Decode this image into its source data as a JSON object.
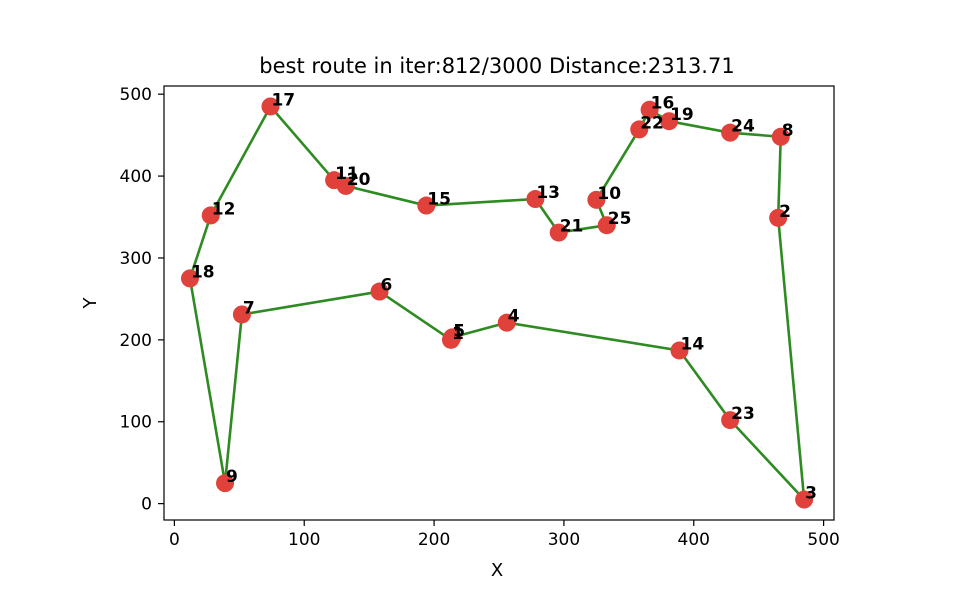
{
  "chart_data": {
    "type": "scatter",
    "title": "best route in iter:812/3000 Distance:2313.71",
    "xlabel": "X",
    "ylabel": "Y",
    "xlim": [
      -8,
      508
    ],
    "ylim": [
      -20,
      510
    ],
    "xticks": [
      0,
      100,
      200,
      300,
      400,
      500
    ],
    "yticks": [
      0,
      100,
      200,
      300,
      400,
      500
    ],
    "grid": false,
    "legend": "none",
    "colors": {
      "points": "#e0413a",
      "route": "#2e8b22"
    },
    "points": [
      {
        "id": "1",
        "x": 213,
        "y": 200
      },
      {
        "id": "2",
        "x": 465,
        "y": 349
      },
      {
        "id": "3",
        "x": 485,
        "y": 5
      },
      {
        "id": "4",
        "x": 256,
        "y": 221
      },
      {
        "id": "5",
        "x": 214,
        "y": 203
      },
      {
        "id": "6",
        "x": 158,
        "y": 259
      },
      {
        "id": "7",
        "x": 52,
        "y": 231
      },
      {
        "id": "8",
        "x": 467,
        "y": 448
      },
      {
        "id": "9",
        "x": 39,
        "y": 25
      },
      {
        "id": "10",
        "x": 325,
        "y": 371
      },
      {
        "id": "11",
        "x": 123,
        "y": 395
      },
      {
        "id": "12",
        "x": 28,
        "y": 352
      },
      {
        "id": "13",
        "x": 278,
        "y": 372
      },
      {
        "id": "14",
        "x": 389,
        "y": 187
      },
      {
        "id": "15",
        "x": 194,
        "y": 364
      },
      {
        "id": "16",
        "x": 366,
        "y": 481
      },
      {
        "id": "17",
        "x": 74,
        "y": 485
      },
      {
        "id": "18",
        "x": 12,
        "y": 275
      },
      {
        "id": "19",
        "x": 381,
        "y": 467
      },
      {
        "id": "20",
        "x": 132,
        "y": 388
      },
      {
        "id": "21",
        "x": 296,
        "y": 331
      },
      {
        "id": "22",
        "x": 358,
        "y": 457
      },
      {
        "id": "23",
        "x": 428,
        "y": 102
      },
      {
        "id": "24",
        "x": 428,
        "y": 453
      },
      {
        "id": "25",
        "x": 333,
        "y": 340
      }
    ],
    "route": [
      "17",
      "11",
      "20",
      "15",
      "13",
      "21",
      "25",
      "10",
      "22",
      "16",
      "19",
      "24",
      "8",
      "2",
      "3",
      "23",
      "14",
      "4",
      "5",
      "1",
      "6",
      "7",
      "9",
      "18",
      "12",
      "17"
    ]
  }
}
